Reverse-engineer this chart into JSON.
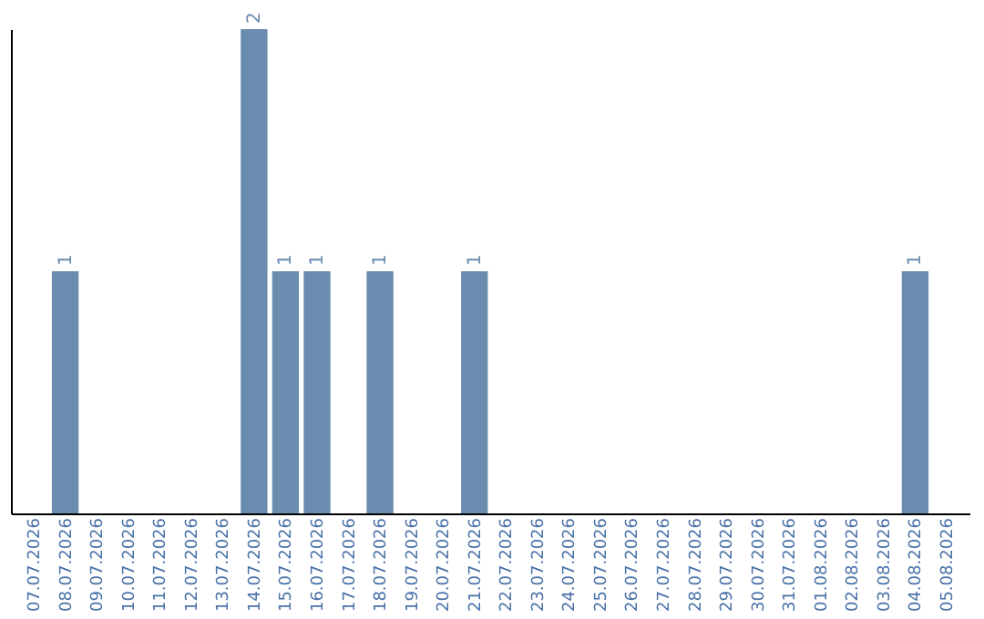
{
  "chart_data": {
    "type": "bar",
    "categories": [
      "07.07.2026",
      "08.07.2026",
      "09.07.2026",
      "10.07.2026",
      "11.07.2026",
      "12.07.2026",
      "13.07.2026",
      "14.07.2026",
      "15.07.2026",
      "16.07.2026",
      "17.07.2026",
      "18.07.2026",
      "19.07.2026",
      "20.07.2026",
      "21.07.2026",
      "22.07.2026",
      "23.07.2026",
      "24.07.2026",
      "25.07.2026",
      "26.07.2026",
      "27.07.2026",
      "28.07.2026",
      "29.07.2026",
      "30.07.2026",
      "31.07.2026",
      "01.08.2026",
      "02.08.2026",
      "03.08.2026",
      "04.08.2026",
      "05.08.2026"
    ],
    "values": [
      0,
      1,
      0,
      0,
      0,
      0,
      0,
      2,
      1,
      1,
      0,
      1,
      0,
      0,
      1,
      0,
      0,
      0,
      0,
      0,
      0,
      0,
      0,
      0,
      0,
      0,
      0,
      0,
      1,
      0
    ],
    "value_labels": [
      null,
      "1",
      null,
      null,
      null,
      null,
      null,
      "2",
      "1",
      "1",
      null,
      "1",
      null,
      null,
      "1",
      null,
      null,
      null,
      null,
      null,
      null,
      null,
      null,
      null,
      null,
      null,
      null,
      null,
      "1",
      null
    ],
    "color": "#6a8caf",
    "tick_labels": "x",
    "grid": false
  }
}
